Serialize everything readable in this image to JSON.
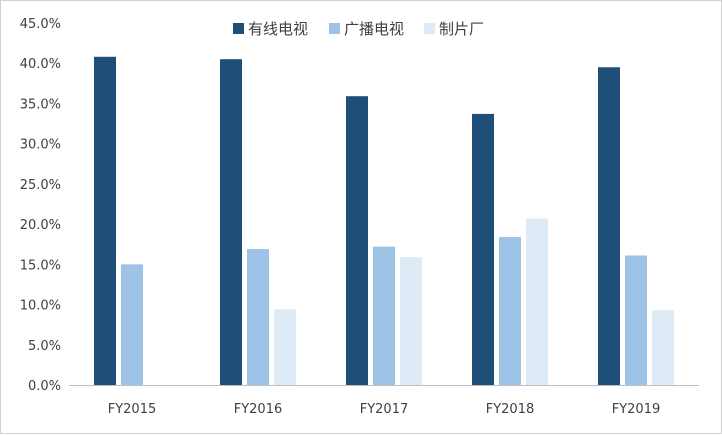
{
  "chart_data": {
    "type": "bar",
    "categories": [
      "FY2015",
      "FY2016",
      "FY2017",
      "FY2018",
      "FY2019"
    ],
    "series": [
      {
        "name": "有线电视",
        "color": "#1f4e79",
        "values": [
          40.8,
          40.5,
          35.9,
          33.7,
          39.5
        ]
      },
      {
        "name": "广播电视",
        "color": "#9dc3e6",
        "values": [
          15.0,
          16.9,
          17.2,
          18.4,
          16.1
        ]
      },
      {
        "name": "制片厂",
        "color": "#deebf7",
        "values": [
          0,
          9.4,
          15.9,
          20.7,
          9.3
        ]
      }
    ],
    "ylim": [
      0,
      45
    ],
    "y_ticks": [
      "0.0%",
      "5.0%",
      "10.0%",
      "15.0%",
      "20.0%",
      "25.0%",
      "30.0%",
      "35.0%",
      "40.0%",
      "45.0%"
    ],
    "y_tick_values": [
      0,
      5,
      10,
      15,
      20,
      25,
      30,
      35,
      40,
      45
    ],
    "legend_position": "top",
    "grid": false
  }
}
